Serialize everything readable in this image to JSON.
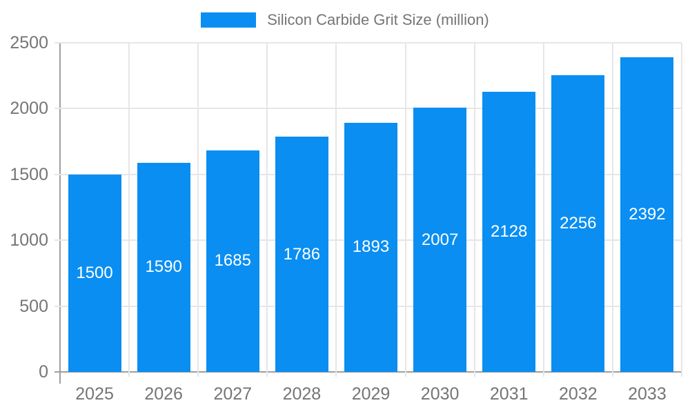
{
  "chart_data": {
    "type": "bar",
    "title": "Silicon Carbide Grit Size (million)",
    "categories": [
      "2025",
      "2026",
      "2027",
      "2028",
      "2029",
      "2030",
      "2031",
      "2032",
      "2033"
    ],
    "series": [
      {
        "name": "Silicon Carbide Grit Size (million)",
        "values": [
          1500,
          1590,
          1685,
          1786,
          1893,
          2007,
          2128,
          2256,
          2392
        ]
      }
    ],
    "xlabel": "",
    "ylabel": "",
    "ylim": [
      0,
      2500
    ],
    "yticks": [
      0,
      500,
      1000,
      1500,
      2000,
      2500
    ],
    "grid": true,
    "legend_position": "top",
    "value_labels": "inside-center",
    "colors": {
      "bar": "#0a8ef2",
      "bar_value_label": "#ffffff",
      "axis_text": "#757575",
      "legend_text": "#757575",
      "gridline": "#e6e6e6",
      "axis_line": "#9e9e9e",
      "background": "#ffffff"
    }
  }
}
